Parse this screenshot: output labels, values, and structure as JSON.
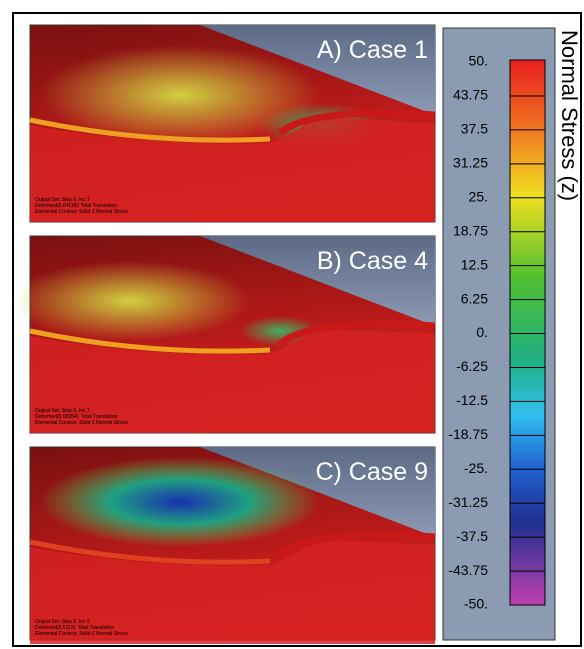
{
  "panels": [
    {
      "label": "A) Case 1",
      "notes": [
        "Output Set: Step 6, Inc 7",
        "Deformed(6.04118): Total Translation",
        "Elemental Contour: Solid Z Normal Stress"
      ]
    },
    {
      "label": "B) Case 4",
      "notes": [
        "Output Set: Step 6, Inc 7",
        "Deformed(5.98354): Total Translation",
        "Elemental Contour: Solid Z Normal Stress"
      ]
    },
    {
      "label": "C) Case 9",
      "notes": [
        "Output Set: Step 6, Inc 5",
        "Deformed(5.5113): Total Translation",
        "Elemental Contour: Solid Z Normal Stress"
      ]
    }
  ],
  "legend": {
    "title": "Normal Stress (z)",
    "ticks": [
      "50.",
      "43.75",
      "37.5",
      "31.25",
      "25.",
      "18.75",
      "12.5",
      "6.25",
      "0.",
      "-6.25",
      "-12.5",
      "-18.75",
      "-25.",
      "-31.25",
      "-37.5",
      "-43.75",
      "-50."
    ]
  }
}
